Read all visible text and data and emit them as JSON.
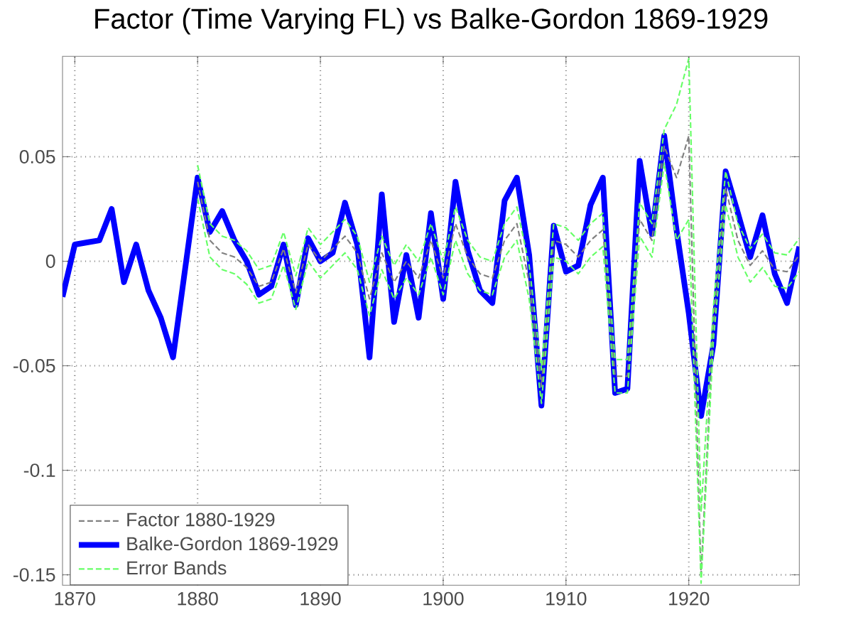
{
  "chart_data": {
    "type": "line",
    "title": "Factor (Time Varying FL) vs Balke-Gordon 1869-1929",
    "xlim": [
      1869,
      1929
    ],
    "ylim": [
      -0.155,
      0.098
    ],
    "xticks": [
      1870,
      1880,
      1890,
      1900,
      1910,
      1920
    ],
    "yticks": [
      -0.15,
      -0.1,
      -0.05,
      0,
      0.05
    ],
    "grid": true,
    "legend": "bottom left",
    "marker": "none",
    "series": [
      {
        "name": "Factor 1880-1929",
        "color": "#808080",
        "line_style": "dashed",
        "x": [
          1880,
          1881,
          1882,
          1883,
          1884,
          1885,
          1886,
          1887,
          1888,
          1889,
          1890,
          1891,
          1892,
          1893,
          1894,
          1895,
          1896,
          1897,
          1898,
          1899,
          1900,
          1901,
          1902,
          1903,
          1904,
          1905,
          1906,
          1907,
          1908,
          1909,
          1910,
          1911,
          1912,
          1913,
          1914,
          1915,
          1916,
          1917,
          1918,
          1919,
          1920,
          1921,
          1922,
          1923,
          1924,
          1925,
          1926,
          1927,
          1928,
          1929
        ],
        "values": [
          0.038,
          0.01,
          0.004,
          0.002,
          -0.003,
          -0.012,
          -0.01,
          0.006,
          -0.015,
          0.008,
          0.0,
          0.006,
          0.012,
          0.004,
          -0.018,
          0.004,
          -0.01,
          0.0,
          -0.008,
          0.01,
          -0.008,
          0.018,
          0.002,
          -0.006,
          -0.008,
          0.01,
          0.018,
          -0.01,
          -0.06,
          0.01,
          0.008,
          0.002,
          0.01,
          0.015,
          -0.055,
          -0.055,
          0.02,
          0.01,
          0.055,
          0.04,
          0.06,
          -0.15,
          -0.03,
          0.035,
          0.01,
          -0.002,
          0.005,
          -0.004,
          -0.005,
          0.003
        ]
      },
      {
        "name": "Balke-Gordon 1869-1929",
        "color": "#0000ff",
        "line_style": "solid",
        "x": [
          1869,
          1870,
          1871,
          1872,
          1873,
          1874,
          1875,
          1876,
          1877,
          1878,
          1879,
          1880,
          1881,
          1882,
          1883,
          1884,
          1885,
          1886,
          1887,
          1888,
          1889,
          1890,
          1891,
          1892,
          1893,
          1894,
          1895,
          1896,
          1897,
          1898,
          1899,
          1900,
          1901,
          1902,
          1903,
          1904,
          1905,
          1906,
          1907,
          1908,
          1909,
          1910,
          1911,
          1912,
          1913,
          1914,
          1915,
          1916,
          1917,
          1918,
          1919,
          1920,
          1921,
          1922,
          1923,
          1924,
          1925,
          1926,
          1927,
          1928,
          1929
        ],
        "values": [
          -0.017,
          0.008,
          0.009,
          0.01,
          0.025,
          -0.01,
          0.008,
          -0.014,
          -0.027,
          -0.046,
          -0.003,
          0.04,
          0.014,
          0.024,
          0.01,
          0.0,
          -0.016,
          -0.012,
          0.008,
          -0.021,
          0.011,
          0.0,
          0.004,
          0.028,
          0.008,
          -0.046,
          0.032,
          -0.029,
          0.003,
          -0.027,
          0.023,
          -0.018,
          0.038,
          0.005,
          -0.014,
          -0.02,
          0.029,
          0.04,
          0.003,
          -0.069,
          0.017,
          -0.005,
          -0.002,
          0.027,
          0.04,
          -0.063,
          -0.061,
          0.048,
          0.013,
          0.06,
          0.015,
          -0.025,
          -0.074,
          -0.04,
          0.043,
          0.023,
          0.002,
          0.022,
          -0.006,
          -0.02,
          0.007
        ]
      },
      {
        "name": "Error Bands",
        "color": "#66ff66",
        "line_style": "dashed",
        "x": [
          1880,
          1881,
          1882,
          1883,
          1884,
          1885,
          1886,
          1887,
          1888,
          1889,
          1890,
          1891,
          1892,
          1893,
          1894,
          1895,
          1896,
          1897,
          1898,
          1899,
          1900,
          1901,
          1902,
          1903,
          1904,
          1905,
          1906,
          1907,
          1908,
          1909,
          1910,
          1911,
          1912,
          1913,
          1914,
          1915,
          1916,
          1917,
          1918,
          1919,
          1920,
          1921,
          1922,
          1923,
          1924,
          1925,
          1926,
          1927,
          1928,
          1929
        ],
        "values": [
          0.046,
          0.018,
          0.012,
          0.01,
          0.005,
          -0.004,
          -0.002,
          0.014,
          -0.007,
          0.016,
          0.008,
          0.014,
          0.02,
          0.012,
          -0.01,
          0.012,
          -0.002,
          0.008,
          0.0,
          0.018,
          0.0,
          0.026,
          0.01,
          0.002,
          0.0,
          0.018,
          0.026,
          -0.002,
          -0.052,
          0.018,
          0.016,
          0.01,
          0.018,
          0.023,
          -0.047,
          -0.047,
          0.028,
          0.018,
          0.063,
          0.075,
          0.097,
          -0.12,
          -0.022,
          0.043,
          0.018,
          0.006,
          0.013,
          0.004,
          0.003,
          0.011
        ]
      },
      {
        "color": "#66ff66",
        "line_style": "dashed",
        "x": [
          1880,
          1881,
          1882,
          1883,
          1884,
          1885,
          1886,
          1887,
          1888,
          1889,
          1890,
          1891,
          1892,
          1893,
          1894,
          1895,
          1896,
          1897,
          1898,
          1899,
          1900,
          1901,
          1902,
          1903,
          1904,
          1905,
          1906,
          1907,
          1908,
          1909,
          1910,
          1911,
          1912,
          1913,
          1914,
          1915,
          1916,
          1917,
          1918,
          1919,
          1920,
          1921,
          1922,
          1923,
          1924,
          1925,
          1926,
          1927,
          1928,
          1929
        ],
        "values": [
          0.03,
          0.002,
          -0.004,
          -0.006,
          -0.011,
          -0.02,
          -0.018,
          -0.002,
          -0.023,
          0.0,
          -0.008,
          -0.002,
          0.004,
          -0.004,
          -0.026,
          -0.004,
          -0.018,
          -0.008,
          -0.016,
          0.002,
          -0.016,
          0.01,
          -0.006,
          -0.014,
          -0.016,
          0.002,
          0.01,
          -0.018,
          -0.068,
          0.002,
          0.0,
          -0.006,
          0.002,
          0.007,
          -0.063,
          -0.063,
          0.012,
          0.002,
          0.047,
          0.01,
          0.02,
          -0.154,
          -0.038,
          0.027,
          0.002,
          -0.01,
          -0.003,
          -0.012,
          -0.013,
          -0.005
        ]
      }
    ]
  }
}
